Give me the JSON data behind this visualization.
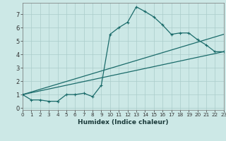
{
  "xlabel": "Humidex (Indice chaleur)",
  "bg_color": "#cce8e6",
  "grid_color": "#aaccca",
  "line_color": "#1a6b6a",
  "xlim": [
    0,
    23
  ],
  "ylim": [
    -0.15,
    7.85
  ],
  "xticks": [
    0,
    1,
    2,
    3,
    4,
    5,
    6,
    7,
    8,
    9,
    10,
    11,
    12,
    13,
    14,
    15,
    16,
    17,
    18,
    19,
    20,
    21,
    22,
    23
  ],
  "yticks": [
    0,
    1,
    2,
    3,
    4,
    5,
    6,
    7
  ],
  "main_x": [
    0,
    1,
    2,
    3,
    4,
    5,
    6,
    7,
    8,
    9,
    10,
    11,
    12,
    13,
    14,
    15,
    16,
    17,
    18,
    19,
    20,
    21,
    22,
    23
  ],
  "main_y": [
    1.0,
    0.6,
    0.6,
    0.5,
    0.5,
    1.0,
    1.0,
    1.1,
    0.85,
    1.7,
    5.5,
    6.0,
    6.4,
    7.55,
    7.2,
    6.8,
    6.2,
    5.5,
    5.6,
    5.6,
    5.1,
    4.7,
    4.2,
    4.2
  ],
  "line1_x": [
    0,
    23
  ],
  "line1_y": [
    1.0,
    4.2
  ],
  "line2_x": [
    0,
    23
  ],
  "line2_y": [
    1.0,
    5.5
  ],
  "lw": 0.9,
  "ms": 3.0,
  "xlabel_fontsize": 6.5,
  "tick_fontsize_x": 5.2,
  "tick_fontsize_y": 6.0
}
